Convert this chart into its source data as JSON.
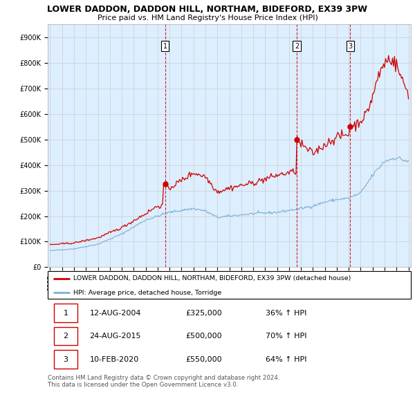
{
  "title": "LOWER DADDON, DADDON HILL, NORTHAM, BIDEFORD, EX39 3PW",
  "subtitle": "Price paid vs. HM Land Registry's House Price Index (HPI)",
  "ylim": [
    0,
    950000
  ],
  "yticks": [
    0,
    100000,
    200000,
    300000,
    400000,
    500000,
    600000,
    700000,
    800000,
    900000
  ],
  "ytick_labels": [
    "£0",
    "£100K",
    "£200K",
    "£300K",
    "£400K",
    "£500K",
    "£600K",
    "£700K",
    "£800K",
    "£900K"
  ],
  "x_start_year": 1995,
  "x_end_year": 2025,
  "red_line_color": "#cc0000",
  "blue_line_color": "#7aaed4",
  "grid_color": "#cccccc",
  "plot_bg_color": "#ddeeff",
  "vline_color": "#cc0000",
  "transaction_years": [
    2004.625,
    2015.646,
    2020.117
  ],
  "transaction_labels": [
    "1",
    "2",
    "3"
  ],
  "transaction_prices": [
    325000,
    500000,
    550000
  ],
  "transaction_pct": [
    "36%",
    "70%",
    "64%"
  ],
  "transaction_display": [
    "12-AUG-2004",
    "24-AUG-2015",
    "10-FEB-2020"
  ],
  "legend_red_label": "LOWER DADDON, DADDON HILL, NORTHAM, BIDEFORD, EX39 3PW (detached house)",
  "legend_blue_label": "HPI: Average price, detached house, Torridge",
  "footer_text": "Contains HM Land Registry data © Crown copyright and database right 2024.\nThis data is licensed under the Open Government Licence v3.0."
}
